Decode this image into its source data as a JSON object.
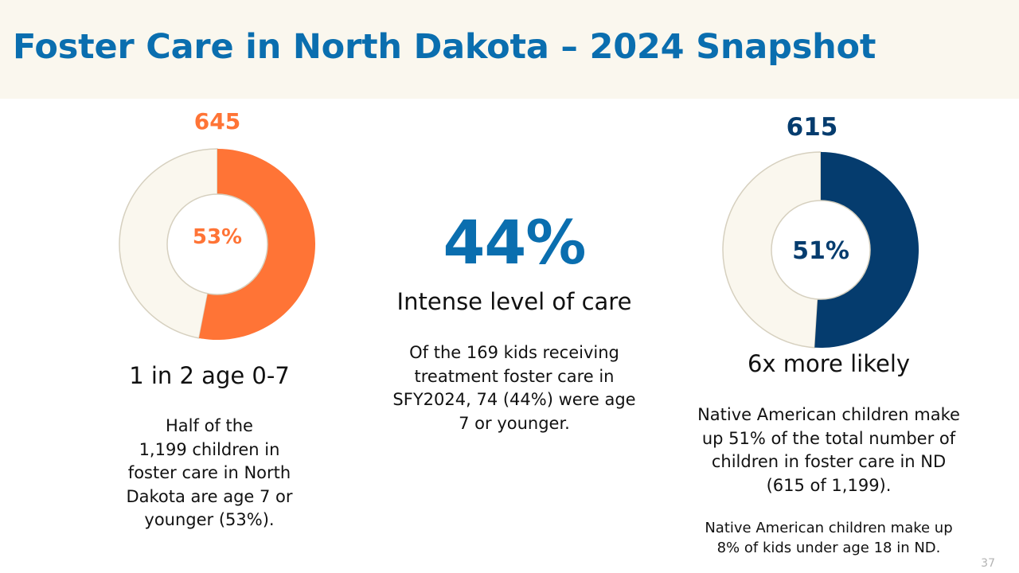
{
  "slide": {
    "title": "Foster Care in North Dakota – 2024 Snapshot",
    "page_number": "37"
  },
  "left_panel": {
    "count": "645",
    "donut_percent_label": "53%",
    "donut_value_percent": 53,
    "heading": "1 in 2 age 0-7",
    "body_lines": [
      "Half of the",
      "1,199 children in",
      "foster care in North",
      "Dakota are age 7 or",
      "younger (53%)."
    ]
  },
  "center_panel": {
    "stat": "44%",
    "heading": "Intense level of care",
    "body_lines": [
      "Of the 169 kids receiving",
      "treatment foster care in",
      "SFY2024, 74 (44%) were age",
      "7 or younger."
    ]
  },
  "right_panel": {
    "count": "615",
    "donut_percent_label": "51%",
    "donut_value_percent": 51,
    "heading": "6x more likely",
    "body_lines": [
      "Native American children make",
      "up 51% of the total number of",
      "children in foster care in ND",
      "(615 of 1,199)."
    ],
    "footnote_lines": [
      "Native American children make up",
      "8% of kids under age 18 in ND."
    ]
  },
  "colors": {
    "title_blue": "#0a6eaf",
    "orange": "#ff7436",
    "navy": "#053c6e",
    "donut_remainder": "#faf7ee",
    "donut_outline": "#d6d0bf"
  }
}
